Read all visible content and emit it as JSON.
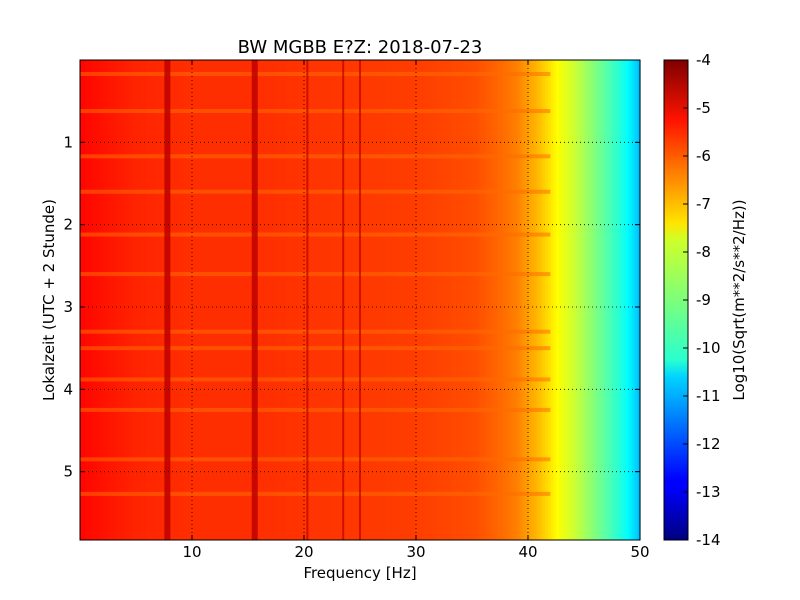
{
  "chart_data": {
    "type": "heatmap",
    "title": "BW MGBB E?Z: 2018-07-23",
    "xlabel": "Frequency [Hz]",
    "ylabel": "Lokalzeit (UTC + 2 Stunde)",
    "xlim": [
      0,
      50
    ],
    "ylim": [
      0,
      5.83
    ],
    "y_inverted": true,
    "grid": true,
    "x_ticks": [
      "10",
      "20",
      "30",
      "40",
      "50"
    ],
    "y_ticks": [
      "1",
      "2",
      "3",
      "4",
      "5"
    ],
    "colorbar": {
      "label": "Log10(Sqrt(m**2/s**2/Hz))",
      "range": [
        -14,
        -4
      ],
      "ticks": [
        "-4",
        "-5",
        "-6",
        "-7",
        "-8",
        "-9",
        "-10",
        "-11",
        "-12",
        "-13",
        "-14"
      ],
      "colormap": "jet"
    },
    "spectrum_profile": {
      "frequency_hz": [
        0,
        5,
        10,
        15,
        20,
        25,
        30,
        35,
        37,
        39,
        40,
        41,
        42,
        43,
        44,
        45,
        46,
        47,
        48,
        49,
        50
      ],
      "value": [
        -5.3,
        -5.6,
        -5.7,
        -5.7,
        -5.75,
        -5.8,
        -5.85,
        -6.0,
        -6.2,
        -6.5,
        -6.8,
        -7.1,
        -7.5,
        -7.9,
        -8.2,
        -8.6,
        -9.0,
        -9.4,
        -9.8,
        -10.3,
        -10.9
      ]
    },
    "spectral_lines_hz": [
      7.8,
      15.6,
      20.3,
      23.5,
      25.0
    ],
    "time_bands": [
      0.17,
      0.62,
      1.17,
      1.6,
      2.12,
      2.6,
      3.3,
      3.5,
      3.88,
      4.25,
      4.85,
      5.27
    ]
  }
}
